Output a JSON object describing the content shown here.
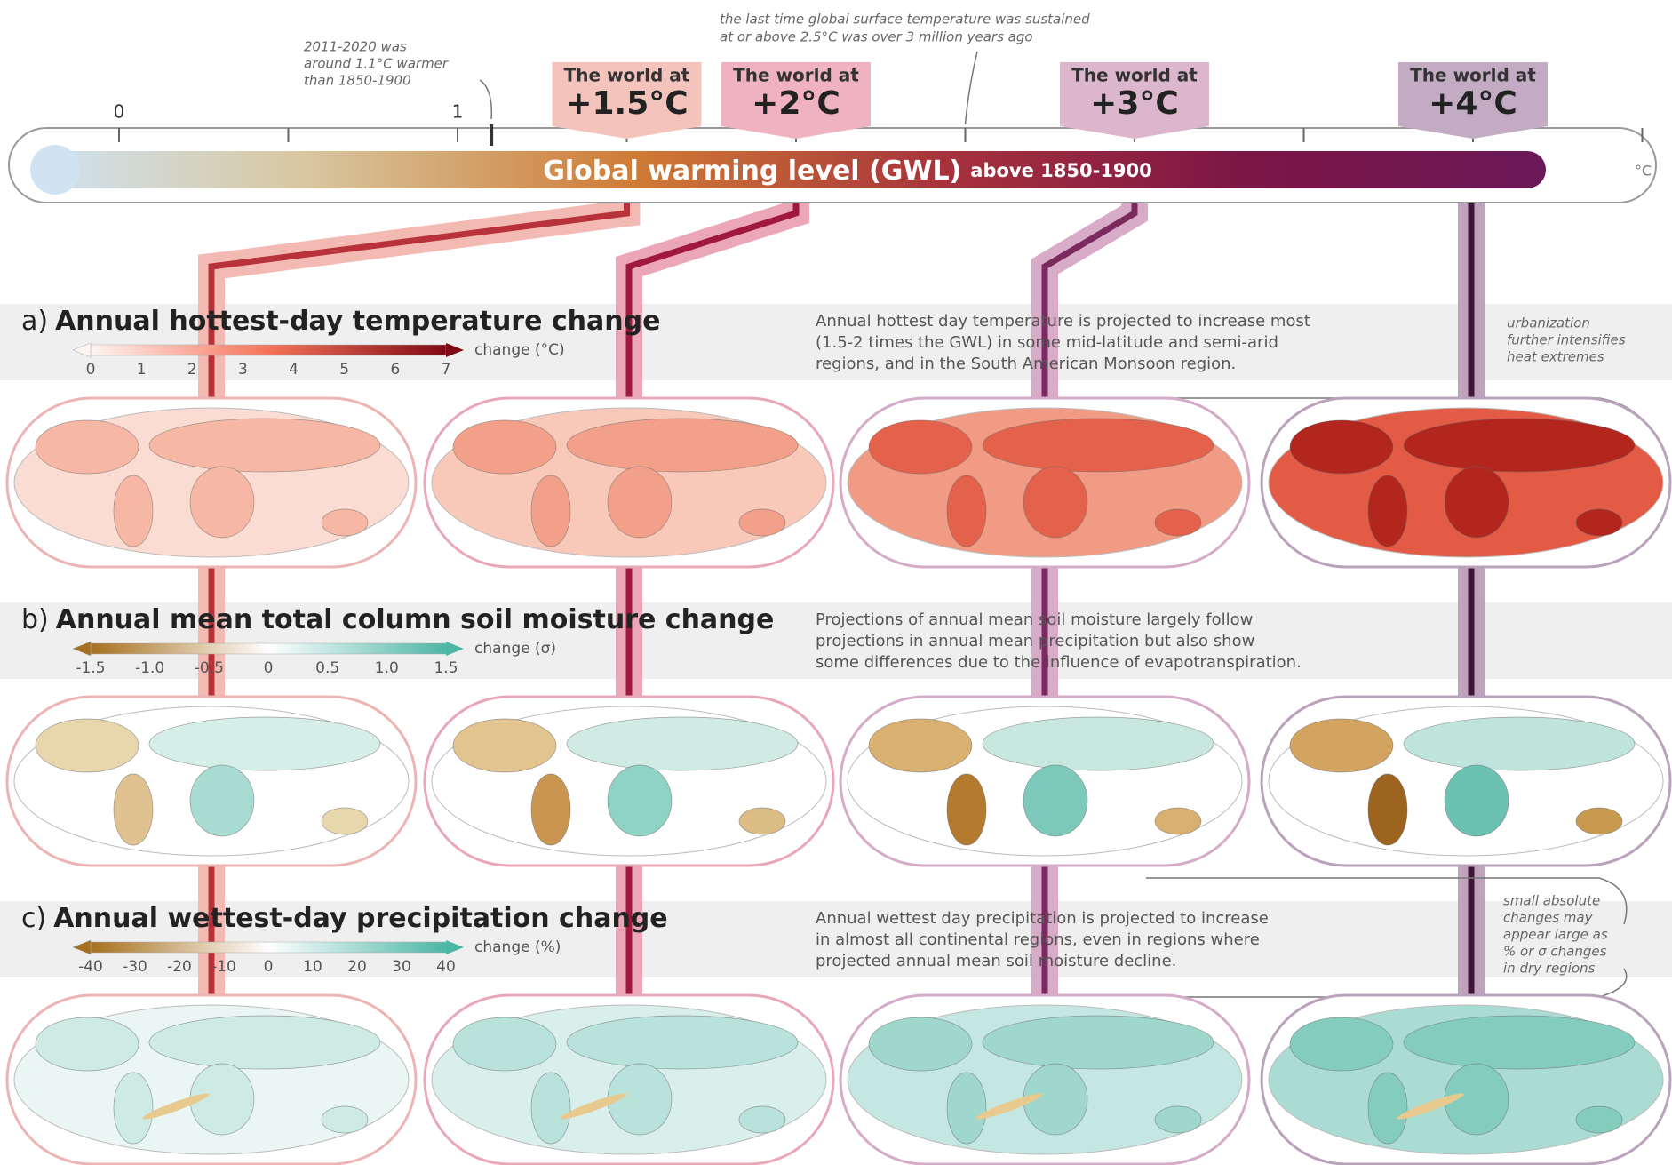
{
  "thermometer": {
    "title_bold": "Global warming level (GWL)",
    "title_rest": "above 1850-1900",
    "unit": "°C",
    "tick_labels": [
      "0",
      "1"
    ]
  },
  "annotations": {
    "past": [
      "2011-2020 was",
      "around 1.1°C warmer",
      "than 1850-1900"
    ],
    "last_time": [
      "the last time global surface temperature was sustained",
      "at or above 2.5°C was over 3 million years ago"
    ],
    "urbanization": [
      "urbanization",
      "further intensifies",
      "heat extremes"
    ],
    "small_changes": [
      "small absolute",
      "changes may",
      "appear large as",
      "% or σ changes",
      "in dry regions"
    ]
  },
  "worlds": [
    {
      "prefix": "The world at",
      "level": "+1.5°C"
    },
    {
      "prefix": "The world at",
      "level": "+2°C"
    },
    {
      "prefix": "The world at",
      "level": "+3°C"
    },
    {
      "prefix": "The world at",
      "level": "+4°C"
    }
  ],
  "panels": [
    {
      "letter": "a)",
      "title": "Annual hottest-day temperature change",
      "legend_label": "change (°C)",
      "legend_ticks": [
        "0",
        "1",
        "2",
        "3",
        "4",
        "5",
        "6",
        "7"
      ],
      "description": [
        "Annual hottest day temperature is projected to increase most",
        "(1.5-2 times the GWL) in some mid-latitude and semi-arid",
        "regions, and in the South American Monsoon region."
      ]
    },
    {
      "letter": "b)",
      "title": "Annual mean total column soil moisture change",
      "legend_label": "change (σ)",
      "legend_ticks": [
        "-1.5",
        "-1.0",
        "-0.5",
        "0",
        "0.5",
        "1.0",
        "1.5"
      ],
      "description": [
        "Projections of annual mean soil moisture largely follow",
        "projections in annual mean precipitation but also show",
        "some differences due to the influence of evapotranspiration."
      ]
    },
    {
      "letter": "c)",
      "title": "Annual wettest-day precipitation change",
      "legend_label": "change (%)",
      "legend_ticks": [
        "-40",
        "-30",
        "-20",
        "-10",
        "0",
        "10",
        "20",
        "30",
        "40"
      ],
      "description": [
        "Annual wettest day precipitation is projected to increase",
        "in almost all continental regions, even in regions where",
        "projected annual mean soil moisture decline."
      ]
    }
  ]
}
